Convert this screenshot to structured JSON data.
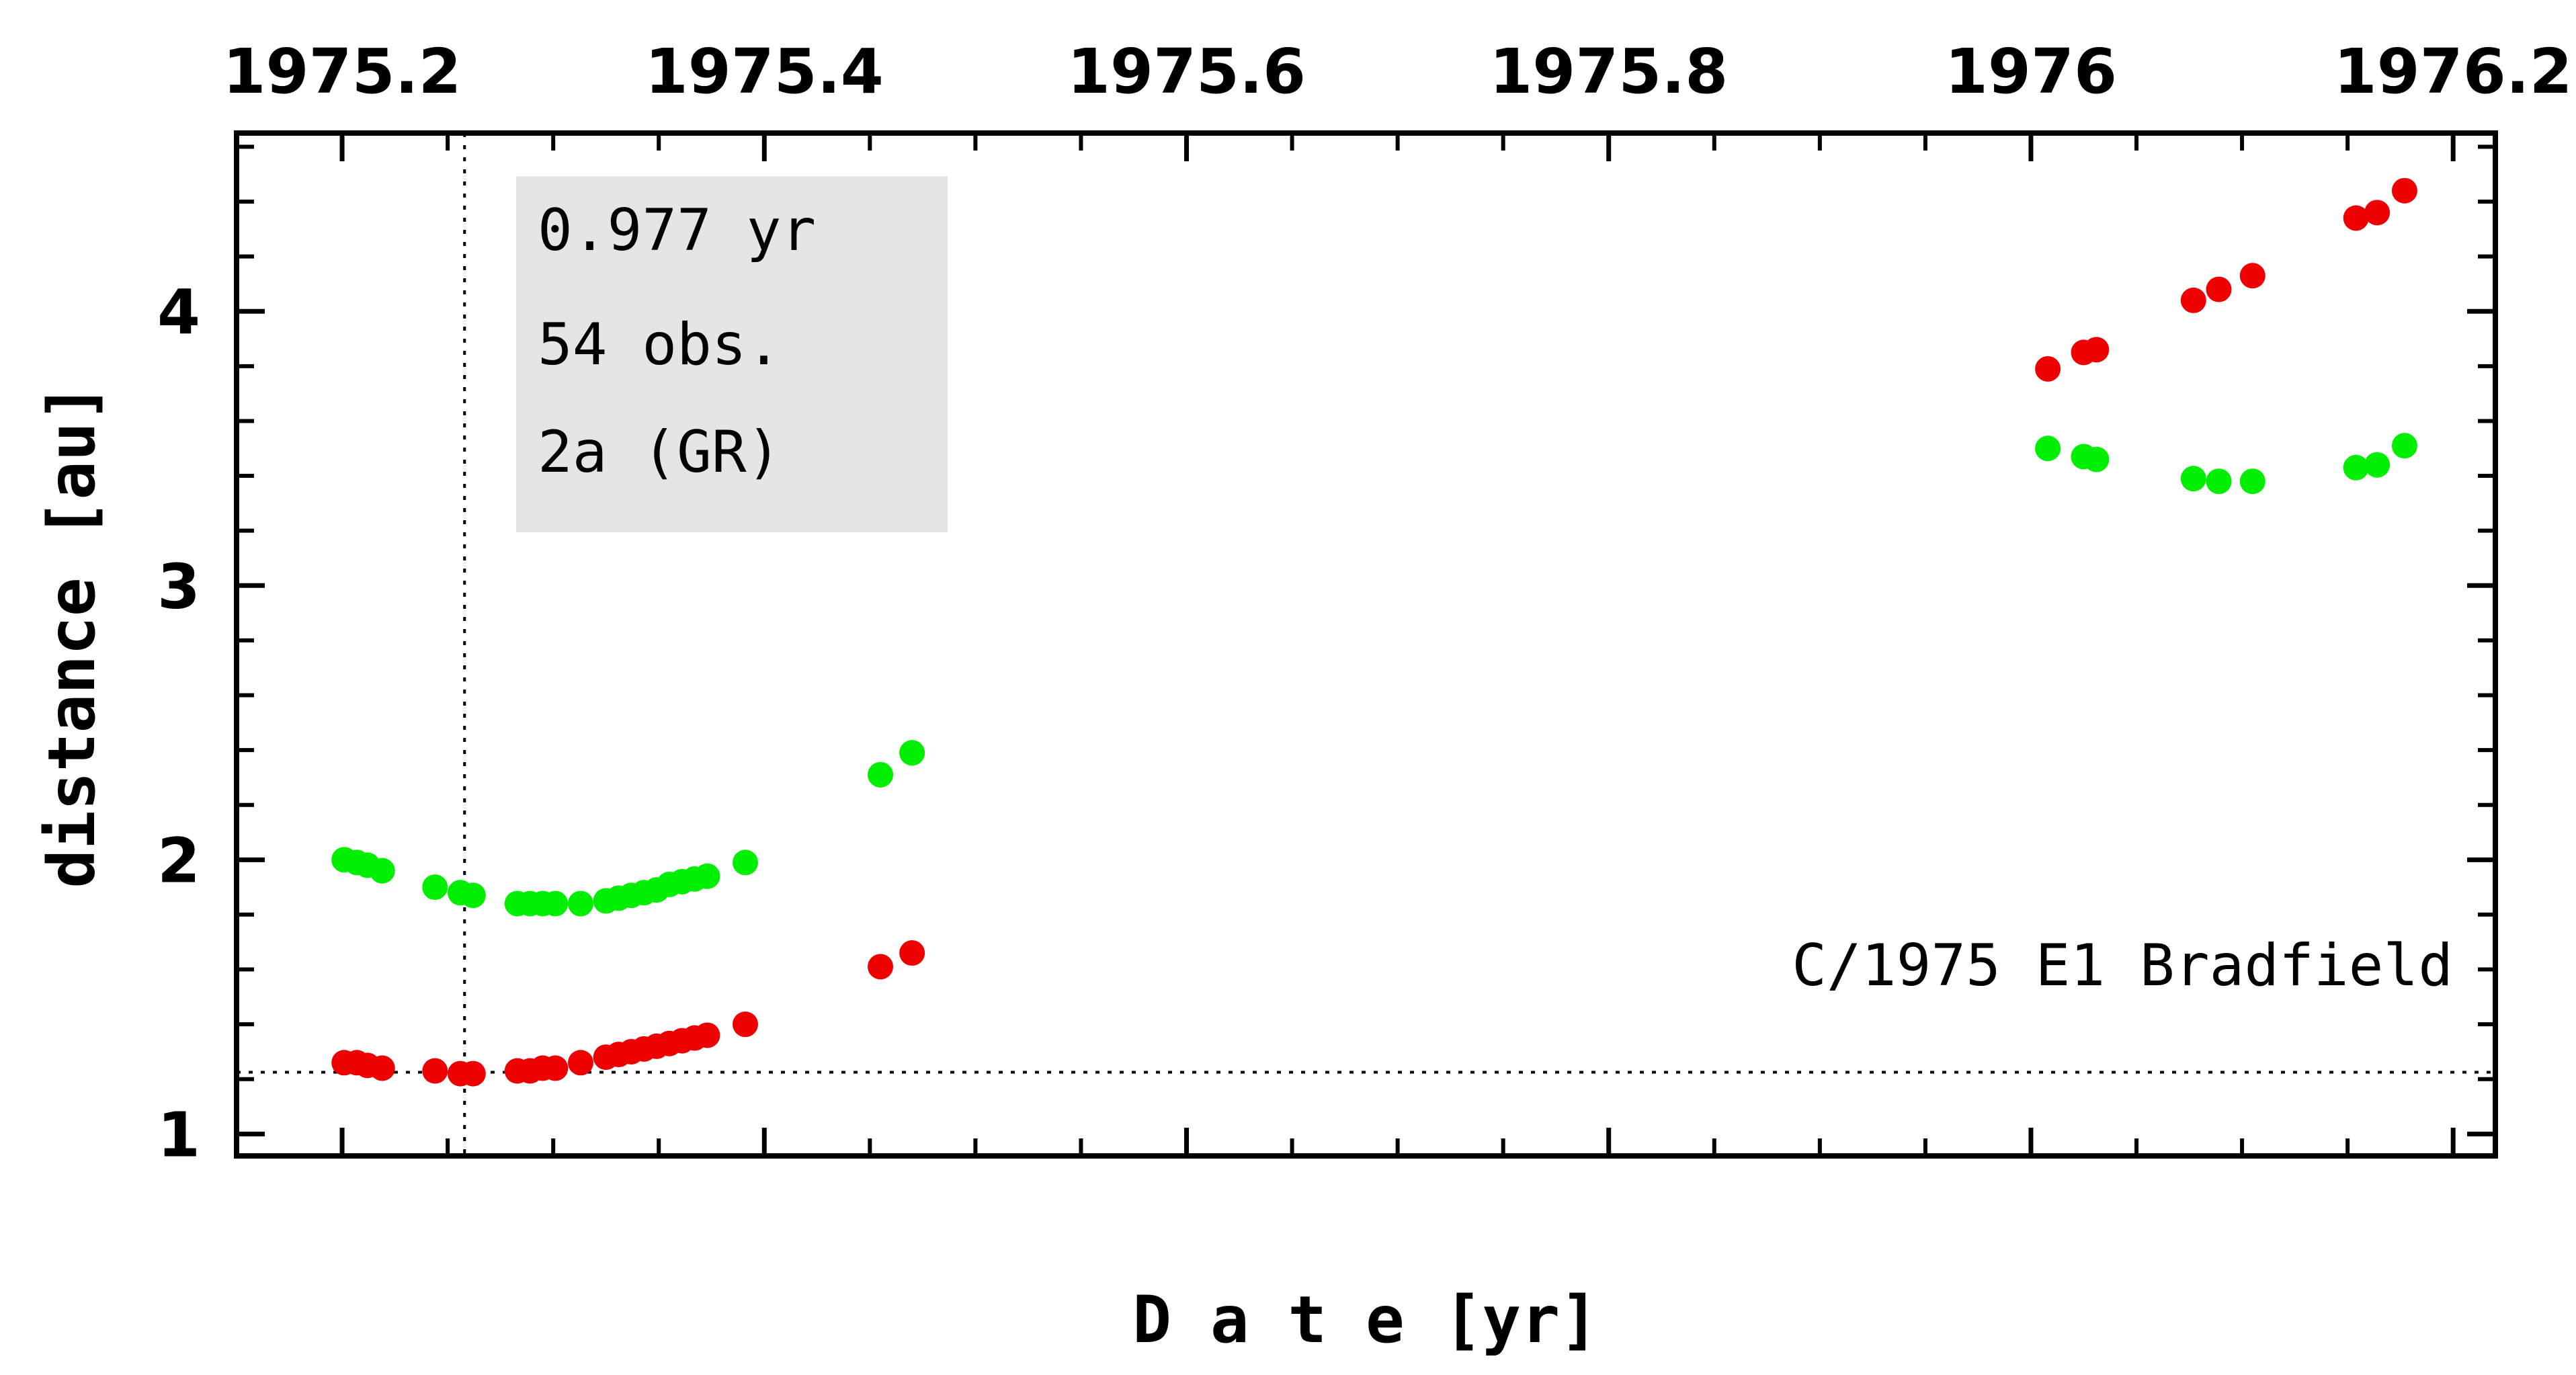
{
  "chart_data": {
    "type": "scatter",
    "title": "",
    "xlabel": "D a t e [yr]",
    "ylabel": "distance [au]",
    "xlim": [
      1975.15,
      1976.22
    ],
    "ylim": [
      0.92,
      4.65
    ],
    "x_top_ticks": [
      {
        "value": 1975.2,
        "label": "1975.2"
      },
      {
        "value": 1975.4,
        "label": "1975.4"
      },
      {
        "value": 1975.6,
        "label": "1975.6"
      },
      {
        "value": 1975.8,
        "label": "1975.8"
      },
      {
        "value": 1976.0,
        "label": "1976"
      },
      {
        "value": 1976.2,
        "label": "1976.2"
      }
    ],
    "y_ticks": [
      {
        "value": 1,
        "label": "1"
      },
      {
        "value": 2,
        "label": "2"
      },
      {
        "value": 3,
        "label": "3"
      },
      {
        "value": 4,
        "label": "4"
      }
    ],
    "grid": false,
    "series": [
      {
        "color": "#00ee00",
        "points": [
          [
            1975.201,
            2.0
          ],
          [
            1975.207,
            1.99
          ],
          [
            1975.212,
            1.98
          ],
          [
            1975.219,
            1.96
          ],
          [
            1975.244,
            1.9
          ],
          [
            1975.256,
            1.88
          ],
          [
            1975.262,
            1.87
          ],
          [
            1975.283,
            1.84
          ],
          [
            1975.289,
            1.84
          ],
          [
            1975.295,
            1.84
          ],
          [
            1975.301,
            1.84
          ],
          [
            1975.313,
            1.84
          ],
          [
            1975.325,
            1.85
          ],
          [
            1975.331,
            1.86
          ],
          [
            1975.337,
            1.87
          ],
          [
            1975.343,
            1.88
          ],
          [
            1975.349,
            1.89
          ],
          [
            1975.355,
            1.91
          ],
          [
            1975.361,
            1.92
          ],
          [
            1975.367,
            1.93
          ],
          [
            1975.373,
            1.94
          ],
          [
            1975.391,
            1.99
          ],
          [
            1975.455,
            2.31
          ],
          [
            1975.47,
            2.39
          ],
          [
            1976.008,
            3.5
          ],
          [
            1976.025,
            3.47
          ],
          [
            1976.031,
            3.46
          ],
          [
            1976.077,
            3.39
          ],
          [
            1976.089,
            3.38
          ],
          [
            1976.105,
            3.38
          ],
          [
            1976.154,
            3.43
          ],
          [
            1976.164,
            3.44
          ],
          [
            1976.177,
            3.51
          ]
        ]
      },
      {
        "color": "#ee0000",
        "points": [
          [
            1975.201,
            1.26
          ],
          [
            1975.207,
            1.26
          ],
          [
            1975.212,
            1.25
          ],
          [
            1975.219,
            1.24
          ],
          [
            1975.244,
            1.23
          ],
          [
            1975.256,
            1.22
          ],
          [
            1975.262,
            1.22
          ],
          [
            1975.283,
            1.23
          ],
          [
            1975.289,
            1.23
          ],
          [
            1975.295,
            1.24
          ],
          [
            1975.301,
            1.24
          ],
          [
            1975.313,
            1.26
          ],
          [
            1975.325,
            1.28
          ],
          [
            1975.331,
            1.29
          ],
          [
            1975.337,
            1.3
          ],
          [
            1975.343,
            1.31
          ],
          [
            1975.349,
            1.32
          ],
          [
            1975.355,
            1.33
          ],
          [
            1975.361,
            1.34
          ],
          [
            1975.367,
            1.35
          ],
          [
            1975.373,
            1.36
          ],
          [
            1975.391,
            1.4
          ],
          [
            1975.455,
            1.61
          ],
          [
            1975.47,
            1.66
          ],
          [
            1976.008,
            3.79
          ],
          [
            1976.025,
            3.85
          ],
          [
            1976.031,
            3.86
          ],
          [
            1976.077,
            4.04
          ],
          [
            1976.089,
            4.08
          ],
          [
            1976.105,
            4.13
          ],
          [
            1976.154,
            4.34
          ],
          [
            1976.164,
            4.36
          ],
          [
            1976.177,
            4.44
          ]
        ]
      }
    ],
    "reference_lines": {
      "vertical_x": 1975.258,
      "horizontal_y": 1.225
    },
    "annotations": {
      "box_lines": [
        "0.977 yr",
        "54 obs.",
        "2a (GR)"
      ],
      "box_color": "#e5e5e5",
      "object_name": "C/1975 E1 Bradfield"
    }
  }
}
